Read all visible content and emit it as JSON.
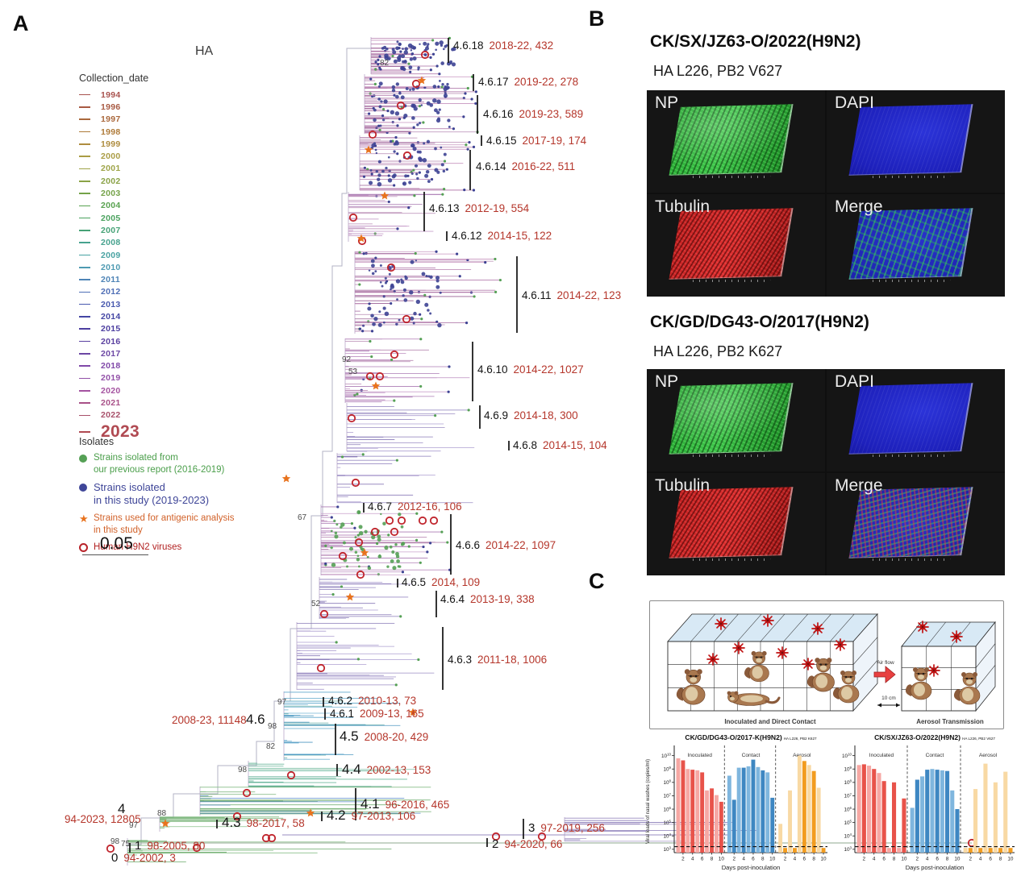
{
  "figure": {
    "panel_a_label": "A",
    "panel_b_label": "B",
    "panel_c_label": "C"
  },
  "tree": {
    "title": "HA",
    "label_color": "#141414",
    "detail_color": "#b5362b",
    "collection_legend": {
      "title": "Collection_date",
      "years": [
        {
          "year": "1994",
          "color": "#a8524e"
        },
        {
          "year": "1996",
          "color": "#a85a42"
        },
        {
          "year": "1997",
          "color": "#aa683c"
        },
        {
          "year": "1998",
          "color": "#ae7a38"
        },
        {
          "year": "1999",
          "color": "#ae8c3e"
        },
        {
          "year": "2000",
          "color": "#aa9c44"
        },
        {
          "year": "2001",
          "color": "#9ea448"
        },
        {
          "year": "2002",
          "color": "#8aa246"
        },
        {
          "year": "2003",
          "color": "#74a248"
        },
        {
          "year": "2004",
          "color": "#58a250"
        },
        {
          "year": "2005",
          "color": "#4aa25e"
        },
        {
          "year": "2007",
          "color": "#46a276"
        },
        {
          "year": "2008",
          "color": "#46a28e"
        },
        {
          "year": "2009",
          "color": "#48a2a2"
        },
        {
          "year": "2010",
          "color": "#4e9ab2"
        },
        {
          "year": "2011",
          "color": "#4e84b6"
        },
        {
          "year": "2012",
          "color": "#4e6eb6"
        },
        {
          "year": "2013",
          "color": "#4858ae"
        },
        {
          "year": "2014",
          "color": "#4446a4"
        },
        {
          "year": "2015",
          "color": "#4c3ea0"
        },
        {
          "year": "2016",
          "color": "#5a40a0"
        },
        {
          "year": "2017",
          "color": "#6c46a4"
        },
        {
          "year": "2018",
          "color": "#8048a8"
        },
        {
          "year": "2019",
          "color": "#9250a8"
        },
        {
          "year": "2020",
          "color": "#a452a0"
        },
        {
          "year": "2021",
          "color": "#a85088"
        },
        {
          "year": "2022",
          "color": "#a8506a"
        },
        {
          "year": "2023",
          "color": "#b04a52",
          "big": true
        }
      ]
    },
    "isolates_legend": {
      "title": "Isolates",
      "items": [
        {
          "marker": "filled-circle",
          "color": "#55a055",
          "text_color": "#4a9e4a",
          "big": false,
          "lines": [
            "Strains isolated from",
            "our previous report (2016-2019)"
          ]
        },
        {
          "marker": "filled-circle",
          "color": "#3f4698",
          "text_color": "#3f4698",
          "big": true,
          "lines": [
            "Strains isolated",
            "in this study (2019-2023)"
          ]
        },
        {
          "marker": "star",
          "color": "#e8731e",
          "text_color": "#d2622a",
          "big": false,
          "lines": [
            "Strains used for antigenic analysis",
            "in this study"
          ]
        },
        {
          "marker": "open-circle",
          "color": "#b8232a",
          "text_color": "#b22222",
          "big": false,
          "lines": [
            "Human H9N2 viruses"
          ]
        }
      ]
    },
    "scale_bar": {
      "label": "0.05"
    },
    "clades": [
      {
        "name": "4.6.18",
        "detail": "2018-22, 432"
      },
      {
        "name": "4.6.17",
        "detail": "2019-22, 278"
      },
      {
        "name": "4.6.16",
        "detail": "2019-23, 589"
      },
      {
        "name": "4.6.15",
        "detail": "2017-19, 174"
      },
      {
        "name": "4.6.14",
        "detail": "2016-22, 511"
      },
      {
        "name": "4.6.13",
        "detail": "2012-19, 554"
      },
      {
        "name": "4.6.12",
        "detail": "2014-15, 122"
      },
      {
        "name": "4.6.11",
        "detail": "2014-22, 123"
      },
      {
        "name": "4.6.10",
        "detail": "2014-22, 1027"
      },
      {
        "name": "4.6.9",
        "detail": "2014-18, 300"
      },
      {
        "name": "4.6.8",
        "detail": "2014-15, 104"
      },
      {
        "name": "4.6.7",
        "detail": "2012-16, 106"
      },
      {
        "name": "4.6.6",
        "detail": "2014-22, 1097"
      },
      {
        "name": "4.6.5",
        "detail": "2014, 109"
      },
      {
        "name": "4.6.4",
        "detail": "2013-19, 338"
      },
      {
        "name": "4.6.3",
        "detail": "2011-18, 1006"
      },
      {
        "name": "4.6.2",
        "detail": "2010-13, 73"
      },
      {
        "name": "4.6.1",
        "detail": "2009-13, 165"
      },
      {
        "name": "4.6",
        "detail": "2008-23, 11148"
      },
      {
        "name": "4.5",
        "detail": "2008-20, 429"
      },
      {
        "name": "4.4",
        "detail": "2002-13, 153"
      },
      {
        "name": "4.1",
        "detail": "96-2016, 465"
      },
      {
        "name": "4.2",
        "detail": "97-2013, 106"
      },
      {
        "name": "4.3",
        "detail": "98-2017, 58"
      },
      {
        "name": "4",
        "detail": "94-2023, 12805"
      },
      {
        "name": "3",
        "detail": "97-2019, 256"
      },
      {
        "name": "2",
        "detail": "94-2020, 66"
      },
      {
        "name": "1",
        "detail": "98-2005, 80"
      },
      {
        "name": "0",
        "detail": "94-2002, 3"
      }
    ],
    "bootstrap_values": [
      "82",
      "92",
      "53",
      "67",
      "52",
      "97",
      "98",
      "82",
      "98",
      "88",
      "97",
      "98",
      "75"
    ]
  },
  "panel_b": {
    "sets": [
      {
        "title": "CK/SX/JZ63-O/2022(H9N2)",
        "subtitle": "HA L226, PB2 V627",
        "quadrants": [
          "NP",
          "DAPI",
          "Tubulin",
          "Merge"
        ]
      },
      {
        "title": "CK/GD/DG43-O/2017(H9N2)",
        "subtitle": "HA L226, PB2 K627",
        "quadrants": [
          "NP",
          "DAPI",
          "Tubulin",
          "Merge"
        ]
      }
    ]
  },
  "panel_c": {
    "cage_diagram": {
      "air_flow_label": "Air flow",
      "distance_label": "10 cm",
      "left_caption": "Inoculated and Direct Contact",
      "right_caption": "Aerosol Transmission"
    }
  },
  "chart_data": [
    {
      "type": "bar",
      "title": "CK/GD/DG43-O/2017-K(H9N2)",
      "title_suffix": "HA L226, PB2 K627",
      "ylabel": "Viral loads of nasal washes (copies/ml)",
      "xlabel": "Days post-inoculation",
      "y_scale": "log10",
      "ylim_log10": [
        3,
        10
      ],
      "y_ticks": [
        "10^3",
        "10^4",
        "10^5",
        "10^6",
        "10^7",
        "10^8",
        "10^9",
        "10^10"
      ],
      "detection_limit_log10": 3.2,
      "x_ticks_per_group": [
        2,
        4,
        6,
        8,
        10
      ],
      "groups": [
        {
          "label": "Inoculated",
          "color_dark": "#e8534a",
          "color_light": "#f6a8a4",
          "values_log10": [
            9.8,
            9.65,
            9.0,
            8.95,
            8.9,
            8.75,
            7.4,
            7.55,
            7.05,
            6.55
          ]
        },
        {
          "label": "Contact",
          "color_dark": "#3e87c2",
          "color_light": "#7fb6de",
          "values_log10": [
            8.5,
            6.7,
            9.1,
            9.1,
            9.2,
            9.7,
            9.15,
            8.9,
            8.75,
            6.85
          ]
        },
        {
          "label": "Aerosol",
          "color_dark": "#f29c1f",
          "color_light": "#f8d9a4",
          "values_log10": [
            4.9,
            3.1,
            7.4,
            3.1,
            10.0,
            9.6,
            9.3,
            8.85,
            7.6,
            3.1
          ]
        }
      ]
    },
    {
      "type": "bar",
      "title": "CK/SX/JZ63-O/2022(H9N2)",
      "title_suffix": "HA L226, PB2 V627",
      "ylabel": "",
      "xlabel": "Days post-inoculation",
      "y_scale": "log10",
      "ylim_log10": [
        3,
        10
      ],
      "y_ticks": [
        "10^3",
        "10^4",
        "10^5",
        "10^6",
        "10^7",
        "10^8",
        "10^9",
        "10^10"
      ],
      "detection_limit_log10": 3.2,
      "x_ticks_per_group": [
        2,
        4,
        6,
        8,
        10
      ],
      "groups": [
        {
          "label": "Inoculated",
          "color_dark": "#e8534a",
          "color_light": "#f6a8a4",
          "values_log10": [
            9.3,
            9.35,
            9.25,
            9.0,
            8.7,
            8.1,
            3.1,
            8.0,
            3.1,
            6.8
          ]
        },
        {
          "label": "Contact",
          "color_dark": "#3e87c2",
          "color_light": "#7fb6de",
          "values_log10": [
            6.1,
            8.2,
            8.45,
            8.95,
            9.0,
            8.95,
            8.9,
            8.85,
            7.4,
            6.0
          ]
        },
        {
          "label": "Aerosol",
          "color_dark": "#f29c1f",
          "color_light": "#f8d9a4",
          "values_log10": [
            3.1,
            3.1,
            7.5,
            3.1,
            9.4,
            3.1,
            8.0,
            3.1,
            8.8,
            3.1
          ]
        }
      ]
    }
  ]
}
